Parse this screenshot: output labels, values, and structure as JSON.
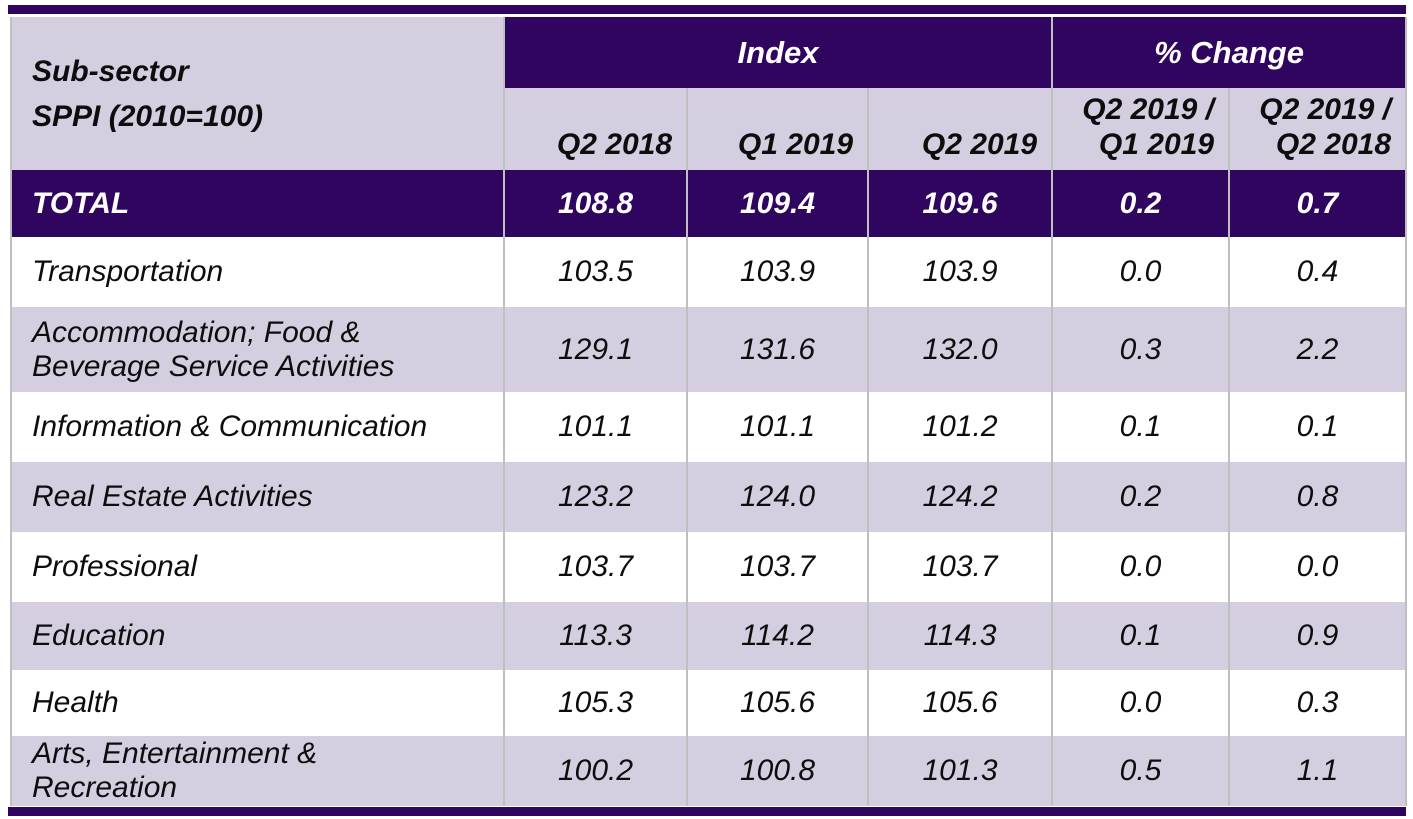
{
  "colors": {
    "dark_purple": "#2F055F",
    "lavender": "#D5CEE1",
    "gridline": "#BFBFBF",
    "text_dark": "#0D0D0D",
    "text_light": "#FFFFFF"
  },
  "table": {
    "header": {
      "subsector_line1": "Sub-sector",
      "subsector_line2": "SPPI (2010=100)",
      "group_index": "Index",
      "group_pct_change": "% Change",
      "index_columns": [
        "Q2 2018",
        "Q1 2019",
        "Q2 2019"
      ],
      "pct_columns": [
        {
          "line1": "Q2 2019 /",
          "line2": "Q1 2019"
        },
        {
          "line1": "Q2 2019 /",
          "line2": "Q2 2018"
        }
      ]
    },
    "total": {
      "label": "TOTAL",
      "v": [
        "108.8",
        "109.4",
        "109.6",
        "0.2",
        "0.7"
      ]
    },
    "rows": [
      {
        "label": "Transportation",
        "label2": "",
        "v": [
          "103.5",
          "103.9",
          "103.9",
          "0.0",
          "0.4"
        ]
      },
      {
        "label": "Accommodation; Food &",
        "label2": "Beverage Service Activities",
        "v": [
          "129.1",
          "131.6",
          "132.0",
          "0.3",
          "2.2"
        ]
      },
      {
        "label": "Information & Communication",
        "label2": "",
        "v": [
          "101.1",
          "101.1",
          "101.2",
          "0.1",
          "0.1"
        ]
      },
      {
        "label": "Real Estate Activities",
        "label2": "",
        "v": [
          "123.2",
          "124.0",
          "124.2",
          "0.2",
          "0.8"
        ]
      },
      {
        "label": "Professional",
        "label2": "",
        "v": [
          "103.7",
          "103.7",
          "103.7",
          "0.0",
          "0.0"
        ]
      },
      {
        "label": "Education",
        "label2": "",
        "v": [
          "113.3",
          "114.2",
          "114.3",
          "0.1",
          "0.9"
        ]
      },
      {
        "label": "Health",
        "label2": "",
        "v": [
          "105.3",
          "105.6",
          "105.6",
          "0.0",
          "0.3"
        ]
      },
      {
        "label": "Arts, Entertainment &",
        "label2": "Recreation",
        "v": [
          "100.2",
          "100.8",
          "101.3",
          "0.5",
          "1.1"
        ]
      }
    ]
  },
  "chart_data": {
    "type": "table",
    "title": "Sub-sector SPPI (2010=100)",
    "column_groups": [
      "Index",
      "% Change"
    ],
    "columns": [
      "Q2 2018",
      "Q1 2019",
      "Q2 2019",
      "Q2 2019 / Q1 2019",
      "Q2 2019 / Q2 2018"
    ],
    "rows": [
      {
        "label": "TOTAL",
        "values": [
          108.8,
          109.4,
          109.6,
          0.2,
          0.7
        ]
      },
      {
        "label": "Transportation",
        "values": [
          103.5,
          103.9,
          103.9,
          0.0,
          0.4
        ]
      },
      {
        "label": "Accommodation; Food & Beverage Service Activities",
        "values": [
          129.1,
          131.6,
          132.0,
          0.3,
          2.2
        ]
      },
      {
        "label": "Information & Communication",
        "values": [
          101.1,
          101.1,
          101.2,
          0.1,
          0.1
        ]
      },
      {
        "label": "Real Estate Activities",
        "values": [
          123.2,
          124.0,
          124.2,
          0.2,
          0.8
        ]
      },
      {
        "label": "Professional",
        "values": [
          103.7,
          103.7,
          103.7,
          0.0,
          0.0
        ]
      },
      {
        "label": "Education",
        "values": [
          113.3,
          114.2,
          114.3,
          0.1,
          0.9
        ]
      },
      {
        "label": "Health",
        "values": [
          105.3,
          105.6,
          105.6,
          0.0,
          0.3
        ]
      },
      {
        "label": "Arts, Entertainment & Recreation",
        "values": [
          100.2,
          100.8,
          101.3,
          0.5,
          1.1
        ]
      }
    ]
  }
}
